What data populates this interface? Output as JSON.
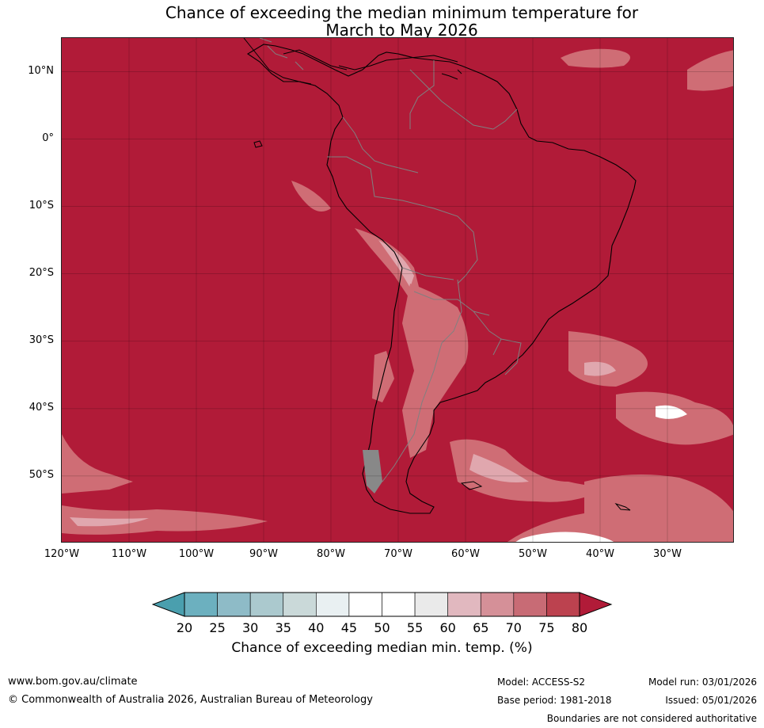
{
  "title": {
    "line1": "Chance of exceeding the median minimum temperature for",
    "line2": "March to May 2026"
  },
  "colors": {
    "ocean_high": "#b11b38",
    "mid_red": "#cf6d75",
    "light_red": "#e0a7ae",
    "white": "#ffffff",
    "land_gray": "#888888",
    "coast": "#000000",
    "borders": "#808080"
  },
  "map": {
    "lat_range": [
      15,
      -60
    ],
    "lon_range": [
      -120,
      -20
    ],
    "lat_labels": [
      "10°N",
      "0°",
      "10°S",
      "20°S",
      "30°S",
      "40°S",
      "50°S"
    ],
    "lon_labels": [
      "120°W",
      "110°W",
      "100°W",
      "90°W",
      "80°W",
      "70°W",
      "60°W",
      "50°W",
      "40°W",
      "30°W"
    ]
  },
  "colorbar": {
    "ticks": [
      "20",
      "25",
      "30",
      "35",
      "40",
      "45",
      "50",
      "55",
      "60",
      "65",
      "70",
      "75",
      "80"
    ],
    "colors": [
      "#4a9fae",
      "#6cb0bf",
      "#8ebbc7",
      "#abc9ce",
      "#cad9d9",
      "#e9f0f2",
      "#ffffff",
      "#ffffff",
      "#eaeaea",
      "#e1b8bf",
      "#d59098",
      "#c86b75",
      "#bc424f",
      "#b11b38"
    ],
    "label": "Chance of exceeding median min. temp. (%)"
  },
  "footer": {
    "website": "www.bom.gov.au/climate",
    "copyright": "© Commonwealth of Australia 2026, Australian Bureau of Meteorology",
    "model": "Model: ACCESS-S2",
    "base_period": "Base period: 1981-2018",
    "model_run": "Model run: 03/01/2026",
    "issued": "Issued: 05/01/2026",
    "disclaimer": "Boundaries are not considered authoritative"
  }
}
